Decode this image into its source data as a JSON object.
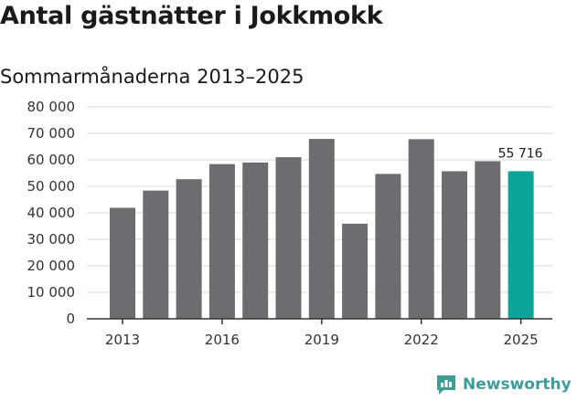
{
  "title": "Antal gästnätter i Jokkmokk",
  "subtitle": "Sommarmånaderna 2013–2025",
  "brand": {
    "name": "Newsworthy",
    "icon": "bar-chart-speech-icon",
    "color": "#3f9c97"
  },
  "colors": {
    "bar": "#6d6c70",
    "highlight": "#0aa598",
    "grid": "#d9d9d9",
    "axis": "#333333"
  },
  "chart_data": {
    "type": "bar",
    "title": "Antal gästnätter i Jokkmokk",
    "subtitle": "Sommarmånaderna 2013–2025",
    "categories": [
      "2013",
      "2014",
      "2015",
      "2016",
      "2017",
      "2018",
      "2019",
      "2020",
      "2021",
      "2022",
      "2023",
      "2024",
      "2025"
    ],
    "values": [
      41900,
      48400,
      52700,
      58400,
      59000,
      61000,
      67900,
      35900,
      54700,
      67800,
      55700,
      59500,
      55716
    ],
    "x_tick_labels": [
      "2013",
      "2016",
      "2019",
      "2022",
      "2025"
    ],
    "y_ticks": [
      0,
      10000,
      20000,
      30000,
      40000,
      50000,
      60000,
      70000,
      80000
    ],
    "y_tick_labels": [
      "0",
      "10 000",
      "20 000",
      "30 000",
      "40 000",
      "50 000",
      "60 000",
      "70 000",
      "80 000"
    ],
    "ylim": [
      0,
      80000
    ],
    "grid": true,
    "highlight_category": "2025",
    "data_labels": [
      {
        "category": "2025",
        "text": "55 716"
      }
    ]
  }
}
